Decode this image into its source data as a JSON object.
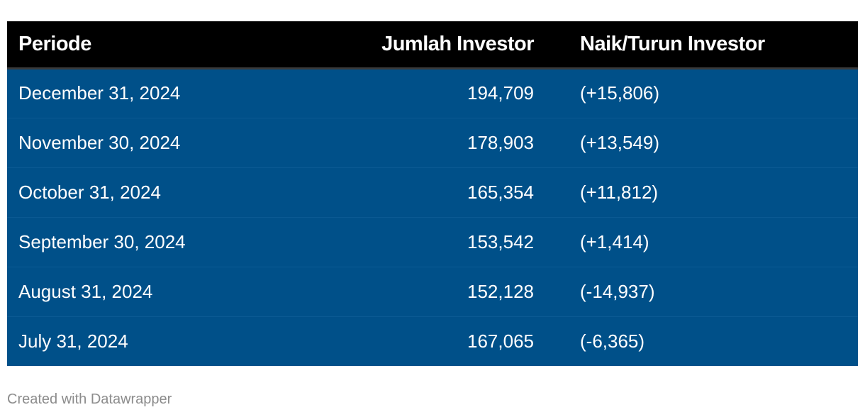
{
  "chart_data": {
    "type": "table",
    "columns": [
      "Periode",
      "Jumlah Investor",
      "Naik/Turun Investor"
    ],
    "rows": [
      {
        "period": "December 31, 2024",
        "investors": "194,709",
        "change": "(+15,806)"
      },
      {
        "period": "November 30, 2024",
        "investors": "178,903",
        "change": "(+13,549)"
      },
      {
        "period": "October 31, 2024",
        "investors": "165,354",
        "change": "(+11,812)"
      },
      {
        "period": "September 30, 2024",
        "investors": "153,542",
        "change": "(+1,414)"
      },
      {
        "period": "August 31, 2024",
        "investors": "152,128",
        "change": "(-14,937)"
      },
      {
        "period": "July 31, 2024",
        "investors": "167,065",
        "change": "(-6,365)"
      }
    ]
  },
  "footer": {
    "credit": "Created with Datawrapper"
  },
  "colors": {
    "header_bg": "#000000",
    "row_bg": "#005089",
    "text": "#ffffff",
    "credit": "#8c8c8c"
  }
}
